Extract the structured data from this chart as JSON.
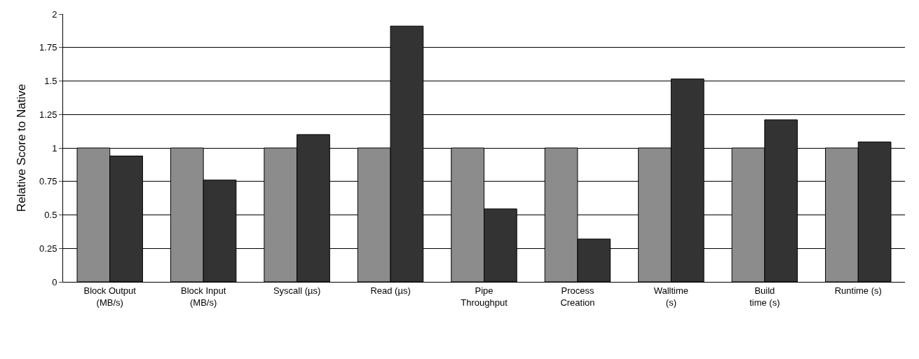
{
  "chart_data": {
    "type": "bar",
    "ylabel": "Relative Score to Native",
    "categories": [
      "Block Output\n(MB/s)",
      "Block Input\n(MB/s)",
      "Syscall (µs)",
      "Read (µs)",
      "Pipe\nThroughput",
      "Process\nCreation",
      "Walltime\n(s)",
      "Build\ntime (s)",
      "Runtime (s)"
    ],
    "series": [
      {
        "color": "#8c8c8c",
        "values": [
          1,
          1,
          1,
          1,
          1,
          1,
          1,
          1,
          1
        ]
      },
      {
        "color": "#333333",
        "values": [
          0.94,
          0.76,
          1.1,
          1.91,
          0.545,
          0.32,
          1.515,
          1.21,
          1.045
        ]
      }
    ],
    "ylim": [
      0,
      2
    ],
    "yticks": [
      0,
      0.25,
      0.5,
      0.75,
      1,
      1.25,
      1.5,
      1.75,
      2
    ],
    "grid": "y"
  }
}
